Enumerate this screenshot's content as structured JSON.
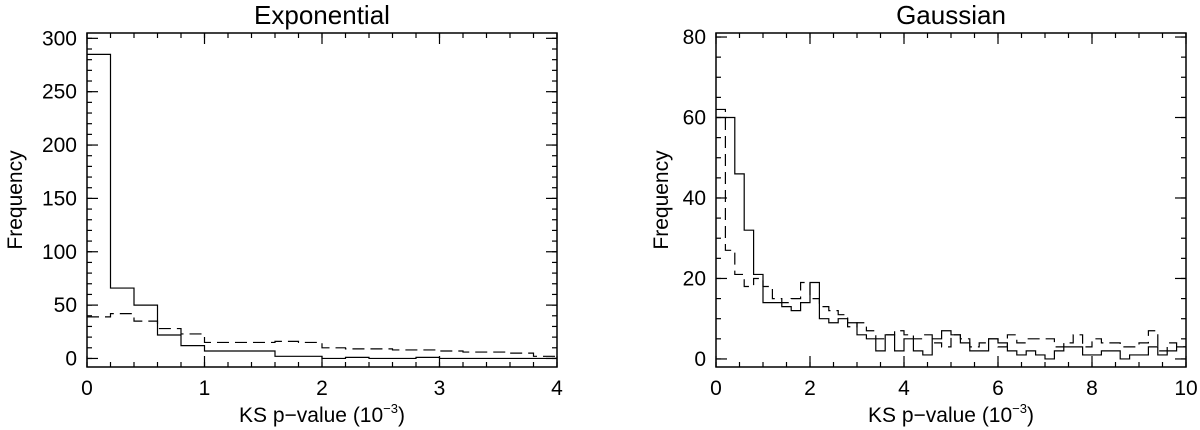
{
  "chart_data": [
    {
      "type": "histogram",
      "title": "Exponential",
      "xlabel": "KS p−value (10",
      "xlabel_sup": "−3",
      "xlabel_end": ")",
      "ylabel": "Frequency",
      "xlim": [
        0,
        4
      ],
      "ylim": [
        -8,
        305
      ],
      "xticks": [
        0,
        1,
        2,
        3,
        4
      ],
      "xtick_labels": [
        "0",
        "1",
        "2",
        "3",
        "4"
      ],
      "yticks": [
        0,
        50,
        100,
        150,
        200,
        250,
        300
      ],
      "ytick_labels": [
        "0",
        "50",
        "100",
        "150",
        "200",
        "250",
        "300"
      ],
      "x_minor_step": 0.2,
      "y_minor_step": 10,
      "series": [
        {
          "style": "solid",
          "bin_edges": [
            0,
            0.2,
            0.4,
            0.6,
            0.8,
            1.0,
            1.2,
            1.4,
            1.6,
            1.8,
            2.0,
            2.2,
            2.4,
            2.6,
            2.8,
            3.0,
            3.2,
            3.4,
            3.6,
            3.8,
            4.0
          ],
          "values": [
            285,
            66,
            50,
            22,
            12,
            7,
            7,
            7,
            2,
            2,
            0,
            1,
            0,
            0,
            1,
            0,
            0,
            0,
            0,
            0
          ]
        },
        {
          "style": "dashed",
          "bin_edges": [
            0,
            0.2,
            0.4,
            0.6,
            0.8,
            1.0,
            1.2,
            1.4,
            1.6,
            1.8,
            2.0,
            2.2,
            2.4,
            2.6,
            2.8,
            3.0,
            3.2,
            3.4,
            3.6,
            3.8,
            4.0
          ],
          "values": [
            39,
            42,
            35,
            28,
            23,
            15,
            15,
            15,
            16,
            15,
            10,
            9,
            9,
            8,
            8,
            7,
            6,
            6,
            5,
            2
          ]
        }
      ]
    },
    {
      "type": "histogram",
      "title": "Gaussian",
      "xlabel": "KS p−value (10",
      "xlabel_sup": "−3",
      "xlabel_end": ")",
      "ylabel": "Frequency",
      "xlim": [
        0,
        10
      ],
      "ylim": [
        -2,
        81
      ],
      "xticks": [
        0,
        2,
        4,
        6,
        8,
        10
      ],
      "xtick_labels": [
        "0",
        "2",
        "4",
        "6",
        "8",
        "10"
      ],
      "yticks": [
        0,
        20,
        40,
        60,
        80
      ],
      "ytick_labels": [
        "0",
        "20",
        "40",
        "60",
        "80"
      ],
      "x_minor_step": 0.5,
      "y_minor_step": 5,
      "series": [
        {
          "style": "solid",
          "bin_start": 0,
          "bin_width": 0.2,
          "values": [
            60,
            60,
            46,
            32,
            21,
            14,
            14,
            13,
            12,
            14,
            19,
            10,
            9,
            10,
            9,
            6,
            5,
            2,
            6,
            2,
            5,
            2,
            1,
            5,
            7,
            6,
            4,
            2,
            2,
            5,
            4,
            2,
            1,
            2,
            1,
            0,
            2,
            3,
            3,
            1,
            1,
            2,
            2,
            0,
            1,
            1,
            3,
            1,
            2,
            3
          ]
        },
        {
          "style": "dashed",
          "bin_start": 0,
          "bin_width": 0.2,
          "values": [
            62,
            27,
            21,
            18,
            20,
            18,
            15,
            14,
            15,
            19,
            15,
            13,
            12,
            11,
            8,
            9,
            7,
            5,
            6,
            7,
            6,
            5,
            6,
            4,
            3,
            6,
            5,
            3,
            4,
            5,
            3,
            6,
            4,
            5,
            5,
            5,
            3,
            4,
            6,
            3,
            5,
            4,
            4,
            3,
            3,
            4,
            7,
            2,
            4,
            3
          ]
        }
      ]
    }
  ]
}
